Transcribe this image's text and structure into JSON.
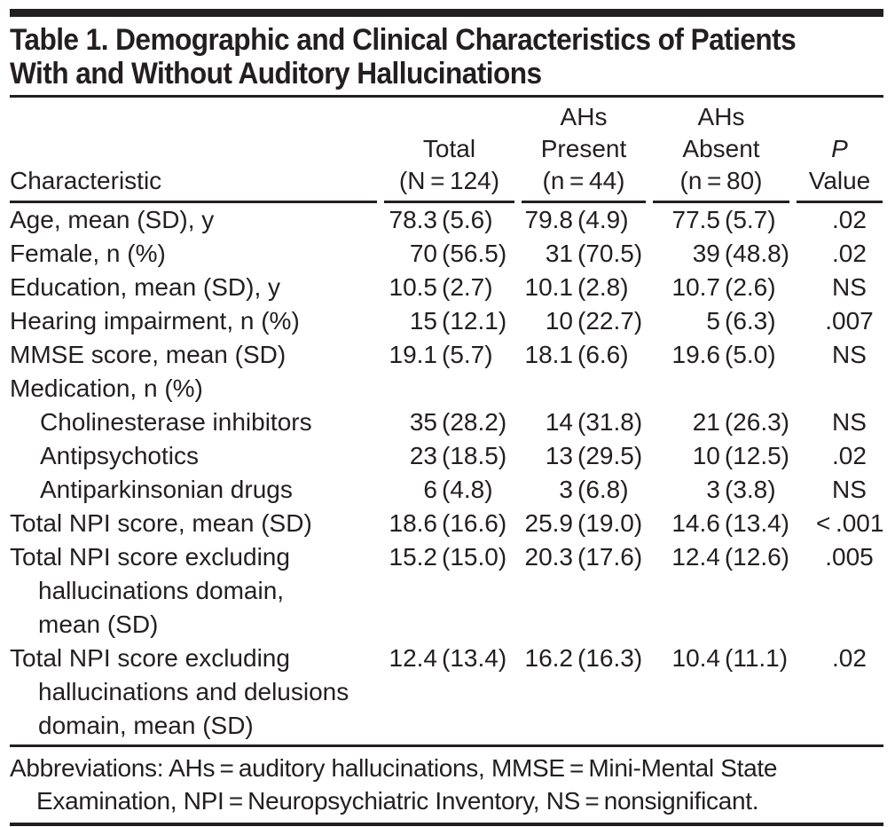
{
  "title_lines": [
    "Table 1. Demographic and Clinical Characteristics of Patients",
    "With and Without Auditory Hallucinations"
  ],
  "colors": {
    "text": "#231f20",
    "rule": "#231f20",
    "background": "#ffffff"
  },
  "table": {
    "header": {
      "characteristic": "Characteristic",
      "columns": [
        {
          "lines": [
            "Total",
            "(N = 124)"
          ]
        },
        {
          "lines": [
            "AHs",
            "Present",
            "(n = 44)"
          ]
        },
        {
          "lines": [
            "AHs",
            "Absent",
            "(n = 80)"
          ]
        },
        {
          "lines": [
            "P",
            "Value"
          ]
        }
      ]
    },
    "rows": [
      {
        "label": "Age, mean (SD), y",
        "total": [
          "78.3",
          "(5.6)"
        ],
        "present": [
          "79.8",
          "(4.9)"
        ],
        "absent": [
          "77.5",
          "(5.7)"
        ],
        "p": ".02"
      },
      {
        "label": "Female, n (%)",
        "total": [
          "70",
          "(56.5)"
        ],
        "present": [
          "31",
          "(70.5)"
        ],
        "absent": [
          "39",
          "(48.8)"
        ],
        "p": ".02"
      },
      {
        "label": "Education, mean (SD), y",
        "total": [
          "10.5",
          "(2.7)"
        ],
        "present": [
          "10.1",
          "(2.8)"
        ],
        "absent": [
          "10.7",
          "(2.6)"
        ],
        "p": "NS"
      },
      {
        "label": "Hearing impairment, n (%)",
        "total": [
          "15",
          "(12.1)"
        ],
        "present": [
          "10",
          "(22.7)"
        ],
        "absent": [
          "5",
          "(6.3)"
        ],
        "p": ".007"
      },
      {
        "label": "MMSE score, mean (SD)",
        "total": [
          "19.1",
          "(5.7)"
        ],
        "present": [
          "18.1",
          "(6.6)"
        ],
        "absent": [
          "19.6",
          "(5.0)"
        ],
        "p": "NS"
      },
      {
        "label": "Medication, n (%)"
      },
      {
        "label": "Cholinesterase inhibitors",
        "indent": 1,
        "total": [
          "35",
          "(28.2)"
        ],
        "present": [
          "14",
          "(31.8)"
        ],
        "absent": [
          "21",
          "(26.3)"
        ],
        "p": "NS"
      },
      {
        "label": "Antipsychotics",
        "indent": 1,
        "total": [
          "23",
          "(18.5)"
        ],
        "present": [
          "13",
          "(29.5)"
        ],
        "absent": [
          "10",
          "(12.5)"
        ],
        "p": ".02"
      },
      {
        "label": "Antiparkinsonian drugs",
        "indent": 1,
        "total": [
          "6",
          "(4.8)"
        ],
        "present": [
          "3",
          "(6.8)"
        ],
        "absent": [
          "3",
          "(3.8)"
        ],
        "p": "NS"
      },
      {
        "label": "Total NPI score, mean (SD)",
        "total": [
          "18.6",
          "(16.6)"
        ],
        "present": [
          "25.9",
          "(19.0)"
        ],
        "absent": [
          "14.6",
          "(13.4)"
        ],
        "p": "< .001"
      },
      {
        "label_lines": [
          "Total NPI score excluding",
          "hallucinations domain,",
          "mean (SD)"
        ],
        "total": [
          "15.2",
          "(15.0)"
        ],
        "present": [
          "20.3",
          "(17.6)"
        ],
        "absent": [
          "12.4",
          "(12.6)"
        ],
        "p": ".005"
      },
      {
        "label_lines": [
          "Total NPI score excluding",
          "hallucinations and delusions",
          "domain, mean (SD)"
        ],
        "total": [
          "12.4",
          "(13.4)"
        ],
        "present": [
          "16.2",
          "(16.3)"
        ],
        "absent": [
          "10.4",
          "(11.1)"
        ],
        "p": ".02"
      }
    ]
  },
  "footnote": "Abbreviations: AHs = auditory hallucinations, MMSE = Mini-Mental State Examination, NPI = Neuropsychiatric Inventory, NS = nonsignificant."
}
